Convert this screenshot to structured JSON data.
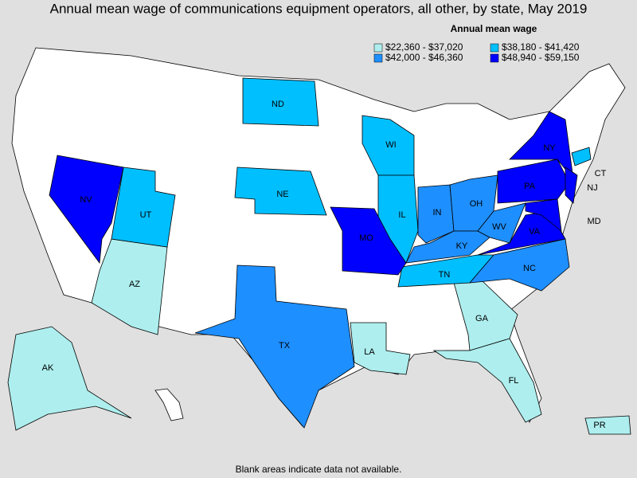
{
  "title": "Annual mean wage of communications equipment operators, all other, by state, May 2019",
  "legend": {
    "title": "Annual mean wage",
    "items": [
      {
        "label": "$22,360 - $37,020",
        "color": "#aeeeee",
        "states": [
          "AK",
          "AZ",
          "LA",
          "GA",
          "FL",
          "PR"
        ]
      },
      {
        "label": "$38,180 - $41,420",
        "color": "#00bfff",
        "states": [
          "ND",
          "NE",
          "UT",
          "WI",
          "IL",
          "TN",
          "CT"
        ]
      },
      {
        "label": "$42,000 - $46,360",
        "color": "#1e8fff",
        "states": [
          "TX",
          "IN",
          "OH",
          "KY",
          "NC",
          "WV"
        ]
      },
      {
        "label": "$48,940 - $59,150",
        "color": "#0000ff",
        "states": [
          "NV",
          "MO",
          "NY",
          "PA",
          "NJ",
          "VA",
          "MD"
        ]
      }
    ]
  },
  "footnote": "Blank areas indicate data not available."
}
